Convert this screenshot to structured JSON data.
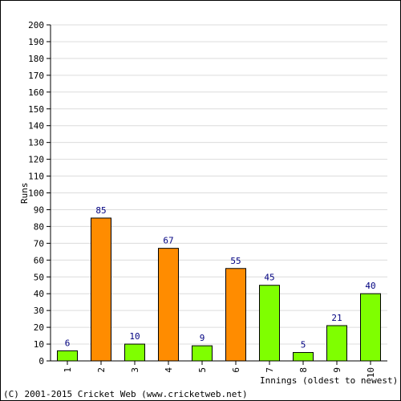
{
  "chart_data": {
    "type": "bar",
    "categories": [
      "1",
      "2",
      "3",
      "4",
      "5",
      "6",
      "7",
      "8",
      "9",
      "10"
    ],
    "values": [
      6,
      85,
      10,
      67,
      9,
      55,
      45,
      5,
      21,
      40
    ],
    "bar_colors": [
      "#7fff00",
      "#ff8c00",
      "#7fff00",
      "#ff8c00",
      "#7fff00",
      "#ff8c00",
      "#7fff00",
      "#7fff00",
      "#7fff00",
      "#7fff00"
    ],
    "xlabel": "Innings (oldest to newest)",
    "ylabel": "Runs",
    "ylim": [
      0,
      200
    ],
    "ytick_step": 10,
    "grid": true
  },
  "copyright": "(C) 2001-2015 Cricket Web (www.cricketweb.net)"
}
